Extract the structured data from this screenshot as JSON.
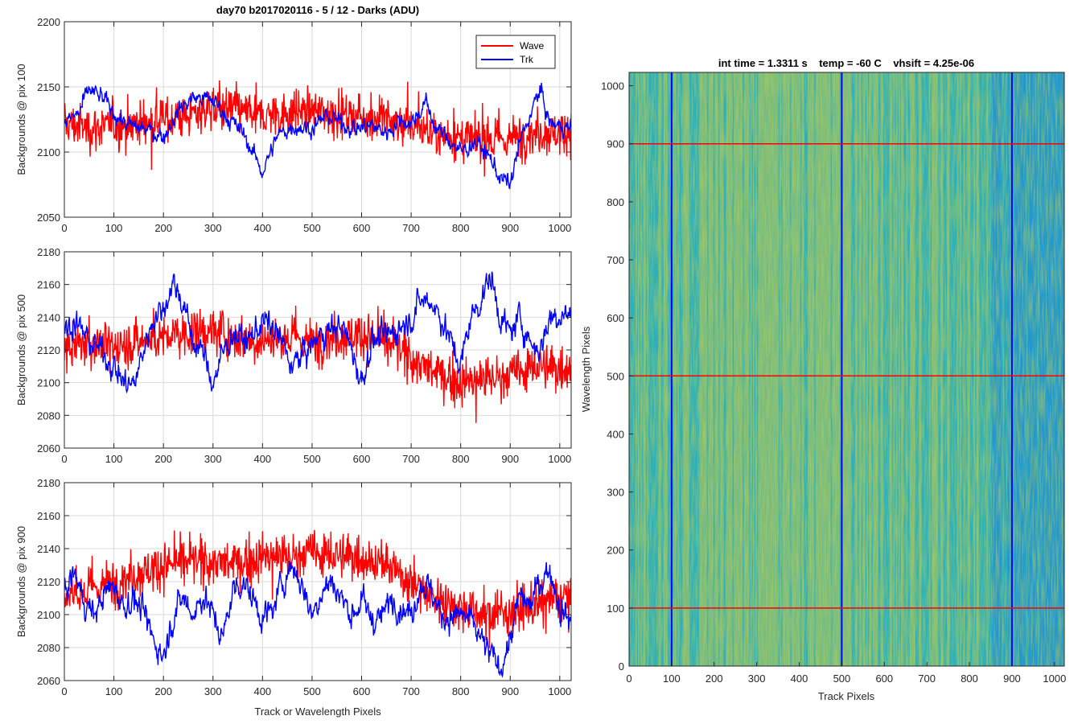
{
  "figure": {
    "title": "day70 b2017020116 - 5 / 12 - Darks (ADU)",
    "image_title": "int time = 1.3311 s    temp = -60 C    vhsift = 4.25e-06"
  },
  "colors": {
    "wave": "#ff0000",
    "trk": "#0000ff",
    "grid": "#d9d9d9",
    "axis": "#262626",
    "image_low": "#1e8fd6",
    "image_mid": "#2fb6b4",
    "image_high": "#a6c85a"
  },
  "chart_data": [
    {
      "type": "line",
      "ylabel": "Backgrounds @ pix 100",
      "xlabel": "",
      "xlim": [
        0,
        1023
      ],
      "ylim": [
        2050,
        2200
      ],
      "xticks": [
        0,
        100,
        200,
        300,
        400,
        500,
        600,
        700,
        800,
        900,
        1000
      ],
      "yticks": [
        2050,
        2100,
        2150,
        2200
      ],
      "grid": true,
      "legend": "top-right",
      "series": [
        {
          "name": "Wave",
          "color": "#ff0000",
          "x": [
            0,
            50,
            100,
            150,
            200,
            250,
            300,
            350,
            400,
            450,
            500,
            550,
            600,
            650,
            700,
            750,
            800,
            850,
            900,
            950,
            1000,
            1023
          ],
          "y": [
            2122,
            2118,
            2120,
            2122,
            2125,
            2128,
            2135,
            2132,
            2128,
            2130,
            2132,
            2130,
            2128,
            2125,
            2120,
            2115,
            2110,
            2108,
            2110,
            2115,
            2115,
            2118
          ]
        },
        {
          "name": "Trk",
          "color": "#0000ff",
          "x": [
            0,
            30,
            50,
            80,
            100,
            130,
            160,
            200,
            230,
            260,
            300,
            340,
            360,
            380,
            400,
            430,
            460,
            500,
            530,
            560,
            590,
            620,
            650,
            680,
            700,
            730,
            750,
            770,
            800,
            830,
            860,
            880,
            900,
            920,
            940,
            960,
            980,
            1000,
            1023
          ],
          "y": [
            2122,
            2130,
            2148,
            2140,
            2130,
            2120,
            2118,
            2112,
            2132,
            2142,
            2140,
            2122,
            2115,
            2100,
            2085,
            2112,
            2120,
            2118,
            2128,
            2122,
            2118,
            2120,
            2115,
            2125,
            2122,
            2138,
            2118,
            2112,
            2100,
            2108,
            2095,
            2080,
            2075,
            2108,
            2128,
            2148,
            2122,
            2120,
            2118
          ]
        }
      ]
    },
    {
      "type": "line",
      "ylabel": "Backgrounds @ pix 500",
      "xlabel": "",
      "xlim": [
        0,
        1023
      ],
      "ylim": [
        2060,
        2180
      ],
      "xticks": [
        0,
        100,
        200,
        300,
        400,
        500,
        600,
        700,
        800,
        900,
        1000
      ],
      "yticks": [
        2060,
        2080,
        2100,
        2120,
        2140,
        2160,
        2180
      ],
      "grid": true,
      "series": [
        {
          "name": "Wave",
          "color": "#ff0000",
          "x": [
            0,
            50,
            100,
            150,
            200,
            250,
            300,
            350,
            400,
            450,
            500,
            550,
            600,
            650,
            700,
            750,
            800,
            850,
            900,
            950,
            1000,
            1023
          ],
          "y": [
            2120,
            2125,
            2122,
            2125,
            2128,
            2130,
            2132,
            2128,
            2126,
            2128,
            2125,
            2128,
            2130,
            2125,
            2115,
            2105,
            2100,
            2102,
            2105,
            2110,
            2108,
            2112
          ]
        },
        {
          "name": "Trk",
          "color": "#0000ff",
          "x": [
            0,
            20,
            50,
            80,
            100,
            120,
            140,
            160,
            180,
            200,
            220,
            240,
            260,
            280,
            300,
            320,
            340,
            370,
            400,
            430,
            460,
            490,
            520,
            560,
            580,
            600,
            620,
            650,
            680,
            700,
            720,
            740,
            760,
            780,
            800,
            820,
            840,
            860,
            880,
            900,
            920,
            940,
            960,
            980,
            1000,
            1023
          ],
          "y": [
            2130,
            2138,
            2125,
            2118,
            2110,
            2100,
            2098,
            2120,
            2140,
            2145,
            2162,
            2148,
            2125,
            2118,
            2100,
            2118,
            2130,
            2125,
            2138,
            2130,
            2110,
            2120,
            2130,
            2135,
            2120,
            2100,
            2125,
            2128,
            2135,
            2140,
            2150,
            2150,
            2140,
            2125,
            2110,
            2140,
            2150,
            2165,
            2140,
            2130,
            2140,
            2125,
            2120,
            2140,
            2142,
            2142
          ]
        }
      ]
    },
    {
      "type": "line",
      "ylabel": "Backgrounds @ pix 900",
      "xlabel": "Track or Wavelength Pixels",
      "xlim": [
        0,
        1023
      ],
      "ylim": [
        2060,
        2180
      ],
      "xticks": [
        0,
        100,
        200,
        300,
        400,
        500,
        600,
        700,
        800,
        900,
        1000
      ],
      "yticks": [
        2060,
        2080,
        2100,
        2120,
        2140,
        2160,
        2180
      ],
      "grid": true,
      "series": [
        {
          "name": "Wave",
          "color": "#ff0000",
          "x": [
            0,
            50,
            100,
            150,
            200,
            250,
            300,
            350,
            400,
            450,
            500,
            550,
            600,
            650,
            700,
            750,
            800,
            850,
            900,
            950,
            1000,
            1023
          ],
          "y": [
            2112,
            2115,
            2120,
            2125,
            2130,
            2132,
            2132,
            2130,
            2135,
            2135,
            2138,
            2135,
            2135,
            2130,
            2120,
            2110,
            2105,
            2100,
            2102,
            2105,
            2110,
            2112
          ]
        },
        {
          "name": "Trk",
          "color": "#0000ff",
          "x": [
            0,
            20,
            40,
            60,
            80,
            100,
            120,
            140,
            160,
            180,
            200,
            220,
            240,
            260,
            280,
            300,
            320,
            340,
            360,
            380,
            400,
            420,
            440,
            460,
            480,
            500,
            520,
            540,
            560,
            580,
            600,
            620,
            640,
            660,
            680,
            700,
            720,
            740,
            760,
            780,
            800,
            820,
            840,
            860,
            880,
            900,
            920,
            940,
            960,
            980,
            1000,
            1023
          ],
          "y": [
            2115,
            2125,
            2108,
            2100,
            2112,
            2118,
            2105,
            2110,
            2100,
            2085,
            2075,
            2100,
            2110,
            2100,
            2112,
            2100,
            2085,
            2115,
            2120,
            2110,
            2098,
            2102,
            2120,
            2130,
            2118,
            2100,
            2115,
            2120,
            2110,
            2100,
            2108,
            2098,
            2098,
            2110,
            2105,
            2100,
            2120,
            2115,
            2100,
            2098,
            2100,
            2096,
            2085,
            2075,
            2068,
            2085,
            2112,
            2105,
            2120,
            2128,
            2105,
            2095
          ]
        }
      ]
    },
    {
      "type": "heatmap",
      "xlabel": "Track Pixels",
      "ylabel": "Wavelength Pixels",
      "xlim": [
        0,
        1023
      ],
      "ylim": [
        0,
        1023
      ],
      "xticks": [
        0,
        100,
        200,
        300,
        400,
        500,
        600,
        700,
        800,
        900,
        1000
      ],
      "yticks": [
        0,
        100,
        200,
        300,
        400,
        500,
        600,
        700,
        800,
        900,
        1000
      ],
      "vertical_markers": [
        100,
        500,
        900
      ],
      "horizontal_markers": [
        100,
        500,
        900
      ]
    }
  ]
}
